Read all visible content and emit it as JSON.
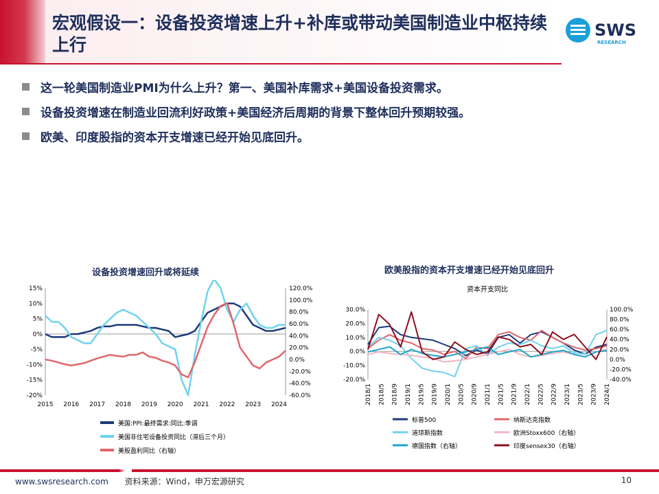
{
  "header": {
    "title": "宏观假设一：设备投资增速上升+补库或带动美国制造业中枢持续上行",
    "logo_text": "SWS",
    "logo_sub": "RESEARCH"
  },
  "bullets": [
    "这一轮美国制造业PMI为什么上升？第一、美国补库需求+美国设备投资需求。",
    "设备投资增速在制造业回流利好政策+美国经济后周期的背景下整体回升预期较强。",
    "欧美、印度股指的资本开支增速已经开始见底回升。"
  ],
  "footer": {
    "site": "www.swsresearch.com",
    "source": "资料来源：Wind，申万宏源研究",
    "page": "10"
  },
  "colors": {
    "brand_red": "#c8102e",
    "navy": "#1f2f5c"
  },
  "chart_data": [
    {
      "type": "line",
      "title": "设备投资增速回升或将延续",
      "x": [
        2015,
        2015.25,
        2015.5,
        2015.75,
        2016,
        2016.25,
        2016.5,
        2016.75,
        2017,
        2017.25,
        2017.5,
        2017.75,
        2018,
        2018.25,
        2018.5,
        2018.75,
        2019,
        2019.25,
        2019.5,
        2019.75,
        2020,
        2020.25,
        2020.5,
        2020.75,
        2021,
        2021.25,
        2021.5,
        2021.75,
        2022,
        2022.25,
        2022.5,
        2022.75,
        2023,
        2023.25,
        2023.5,
        2023.75,
        2024,
        2024.25
      ],
      "xticks": [
        "2015",
        "2016",
        "2017",
        "2018",
        "2019",
        "2020",
        "2021",
        "2022",
        "2023",
        "2024"
      ],
      "left_axis": {
        "ticks": [
          "15%",
          "10%",
          "5%",
          "0%",
          "-5%",
          "-10%",
          "-15%",
          "-20%"
        ],
        "ylim": [
          -20,
          15
        ]
      },
      "right_axis": {
        "ticks": [
          "120.0%",
          "100.0%",
          "80.0%",
          "60.0%",
          "40.0%",
          "20.0%",
          "0.0%",
          "-20.0%",
          "-40.0%",
          "-60.0%"
        ],
        "ylim": [
          -60,
          120
        ]
      },
      "series": [
        {
          "name": "美国:PPI:最终需求:同比:季调",
          "axis": "left",
          "color": "#1a3a78",
          "values": [
            0,
            -1,
            -1,
            -1,
            0,
            0,
            0.5,
            1,
            2,
            2.5,
            2.5,
            3,
            3,
            3,
            3,
            2.5,
            2,
            2,
            1.5,
            1,
            -1,
            -0.5,
            0,
            1,
            4,
            7,
            8,
            9,
            10,
            10,
            9,
            6,
            3,
            2,
            1,
            1,
            1.5,
            2
          ]
        },
        {
          "name": "美国非住宅设备投资同比（滞后三个月）",
          "axis": "left",
          "color": "#6fd2ee",
          "values": [
            6,
            4,
            4,
            2,
            -1,
            -2,
            -3,
            -3,
            0,
            3,
            5,
            7,
            8,
            7,
            6,
            4,
            2,
            0,
            -3,
            -4,
            -5,
            -15,
            -20,
            -7,
            4,
            14,
            18,
            15,
            8,
            4,
            8,
            10,
            6,
            3,
            2,
            2,
            3,
            3
          ]
        },
        {
          "name": "美股盈利同比（右轴）",
          "axis": "right",
          "color": "#e0666a",
          "values": [
            0,
            -2,
            -5,
            -8,
            -10,
            -8,
            -6,
            -2,
            2,
            5,
            8,
            6,
            5,
            8,
            8,
            12,
            5,
            3,
            -2,
            -5,
            -10,
            -25,
            -30,
            -5,
            25,
            55,
            75,
            90,
            95,
            60,
            20,
            5,
            -10,
            -15,
            -5,
            0,
            5,
            15
          ]
        }
      ]
    },
    {
      "type": "line",
      "title": "欧美股指的资本开支增速已经开始见底回升",
      "subtitle": "资本开支同比",
      "xticks": [
        "2018/1",
        "2018/5",
        "2018/9",
        "2019/1",
        "2019/5",
        "2019/9",
        "2020/1",
        "2020/5",
        "2020/9",
        "2021/1",
        "2021/5",
        "2021/9",
        "2022/1",
        "2022/5",
        "2022/9",
        "2023/1",
        "2023/5",
        "2023/9",
        "2024/1"
      ],
      "left_axis": {
        "ticks": [
          "30.0%",
          "20.0%",
          "10.0%",
          "0.0%",
          "-10.0%",
          "-20.0%"
        ],
        "ylim": [
          -20,
          30
        ]
      },
      "right_axis": {
        "ticks": [
          "100.0%",
          "80.0%",
          "60.0%",
          "40.0%",
          "20.0%",
          "0.0%",
          "-20.0%",
          "-40.0%"
        ],
        "ylim": [
          -40,
          100
        ]
      },
      "series": [
        {
          "name": "标普500",
          "axis": "left",
          "color": "#1a3a78",
          "values": [
            5,
            17,
            18,
            12,
            10,
            9,
            8,
            5,
            2,
            -3,
            1,
            -2,
            10,
            12,
            6,
            12,
            14,
            10,
            6,
            1,
            -2,
            3,
            5
          ]
        },
        {
          "name": "纳斯达克指数",
          "axis": "left",
          "color": "#e0666a",
          "values": [
            2,
            8,
            12,
            8,
            6,
            2,
            1,
            -2,
            0,
            -5,
            3,
            2,
            12,
            14,
            10,
            8,
            15,
            10,
            6,
            3,
            1,
            2,
            4
          ]
        },
        {
          "name": "道琼斯指数",
          "axis": "left",
          "color": "#6fd2ee",
          "values": [
            3,
            10,
            8,
            4,
            -5,
            -12,
            -14,
            -15,
            -18,
            2,
            4,
            -3,
            3,
            6,
            5,
            8,
            4,
            2,
            4,
            -1,
            -2,
            12,
            15
          ]
        },
        {
          "name": "欧洲Stoxx600（右轴）",
          "axis": "right",
          "color": "#f2b6c2",
          "values": [
            10,
            15,
            12,
            10,
            8,
            5,
            2,
            -5,
            -3,
            0,
            5,
            10,
            15,
            20,
            10,
            5,
            8,
            12,
            15,
            10,
            5,
            15,
            20
          ]
        },
        {
          "name": "德国指数（右轴）",
          "axis": "right",
          "color": "#1ea6c8",
          "values": [
            15,
            20,
            25,
            10,
            20,
            12,
            8,
            5,
            10,
            15,
            20,
            25,
            10,
            15,
            20,
            5,
            10,
            15,
            18,
            10,
            5,
            15,
            18
          ]
        },
        {
          "name": "印度sensex30（右轴）",
          "axis": "right",
          "color": "#8b0e1e",
          "values": [
            20,
            90,
            70,
            25,
            95,
            15,
            0,
            5,
            35,
            20,
            10,
            15,
            45,
            40,
            25,
            30,
            10,
            55,
            40,
            50,
            25,
            0,
            45
          ]
        }
      ]
    }
  ]
}
